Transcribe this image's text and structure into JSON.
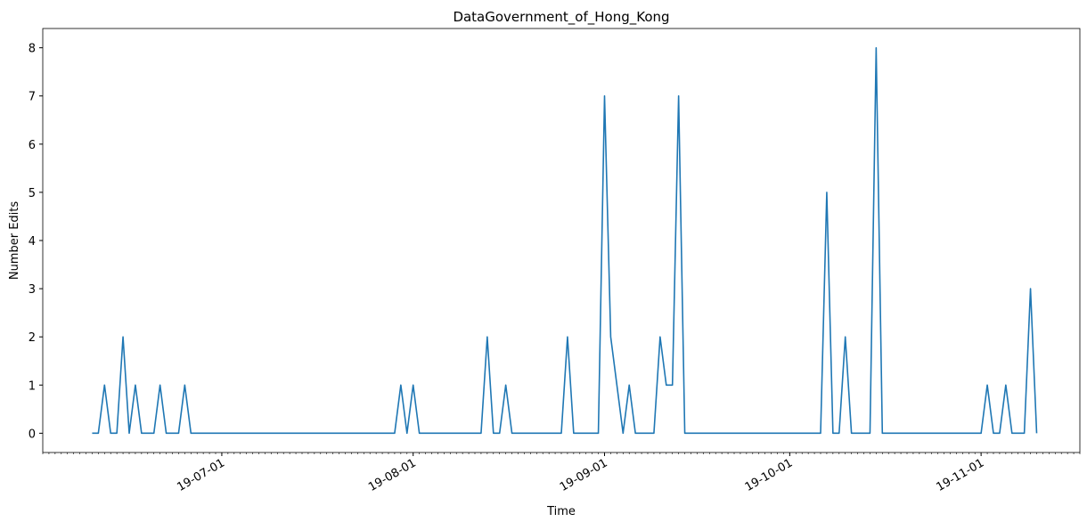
{
  "chart_data": {
    "type": "line",
    "title": "DataGovernment_of_Hong_Kong",
    "x_label": "Time",
    "y_label": "Number Edits",
    "x": [
      "2019-06-10",
      "2019-06-11",
      "2019-06-12",
      "2019-06-13",
      "2019-06-14",
      "2019-06-15",
      "2019-06-16",
      "2019-06-17",
      "2019-06-18",
      "2019-06-19",
      "2019-06-20",
      "2019-06-21",
      "2019-06-22",
      "2019-06-23",
      "2019-06-24",
      "2019-06-25",
      "2019-06-26",
      "2019-07-29",
      "2019-07-30",
      "2019-07-31",
      "2019-08-01",
      "2019-08-02",
      "2019-08-12",
      "2019-08-13",
      "2019-08-14",
      "2019-08-15",
      "2019-08-16",
      "2019-08-17",
      "2019-08-25",
      "2019-08-26",
      "2019-08-27",
      "2019-08-31",
      "2019-09-01",
      "2019-09-02",
      "2019-09-03",
      "2019-09-04",
      "2019-09-05",
      "2019-09-06",
      "2019-09-09",
      "2019-09-10",
      "2019-09-11",
      "2019-09-12",
      "2019-09-13",
      "2019-09-14",
      "2019-10-06",
      "2019-10-07",
      "2019-10-08",
      "2019-10-09",
      "2019-10-10",
      "2019-10-11",
      "2019-10-14",
      "2019-10-15",
      "2019-10-16",
      "2019-11-01",
      "2019-11-02",
      "2019-11-03",
      "2019-11-04",
      "2019-11-05",
      "2019-11-06",
      "2019-11-08",
      "2019-11-09",
      "2019-11-10"
    ],
    "series": [
      {
        "color": "#1f77b4",
        "values": [
          0,
          0,
          1,
          0,
          0,
          2,
          0,
          1,
          0,
          0,
          0,
          1,
          0,
          0,
          0,
          1,
          0,
          0,
          1,
          0,
          1,
          0,
          0,
          2,
          0,
          0,
          1,
          0,
          0,
          2,
          0,
          0,
          7,
          2,
          1,
          0,
          1,
          0,
          0,
          2,
          1,
          1,
          7,
          0,
          0,
          5,
          0,
          0,
          2,
          0,
          0,
          8,
          0,
          0,
          1,
          0,
          0,
          1,
          0,
          0,
          3,
          0
        ]
      }
    ],
    "xlim": [
      "2019-06-02",
      "2019-11-17"
    ],
    "xticks": [
      {
        "value": "2019-07-01",
        "label": "19-07-01"
      },
      {
        "value": "2019-08-01",
        "label": "19-08-01"
      },
      {
        "value": "2019-09-01",
        "label": "19-09-01"
      },
      {
        "value": "2019-10-01",
        "label": "19-10-01"
      },
      {
        "value": "2019-11-01",
        "label": "19-11-01"
      }
    ],
    "ylim": [
      -0.4,
      8.4
    ],
    "yticks": [
      0,
      1,
      2,
      3,
      4,
      5,
      6,
      7,
      8
    ],
    "grid": false
  }
}
